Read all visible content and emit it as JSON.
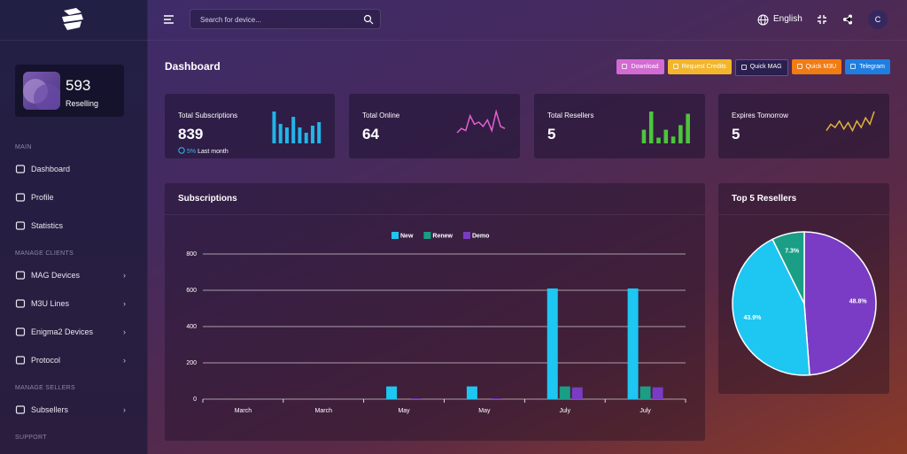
{
  "sidebar": {
    "balance": {
      "value": 593,
      "label": "Reselling"
    },
    "sections": [
      {
        "title": "MAIN",
        "items": [
          {
            "label": "Dashboard"
          },
          {
            "label": "Profile"
          },
          {
            "label": "Statistics"
          }
        ]
      },
      {
        "title": "MANAGE CLIENTS",
        "items": [
          {
            "label": "MAG Devices",
            "submenu": true
          },
          {
            "label": "M3U Lines",
            "submenu": true
          },
          {
            "label": "Enigma2 Devices",
            "submenu": true
          },
          {
            "label": "Protocol",
            "submenu": true
          }
        ]
      },
      {
        "title": "MANAGE SELLERS",
        "items": [
          {
            "label": "Subsellers",
            "submenu": true
          }
        ]
      },
      {
        "title": "SUPPORT"
      }
    ]
  },
  "topbar": {
    "search_placeholder": "Search for device...",
    "language": "English",
    "avatar": "C"
  },
  "page_title": "Dashboard",
  "actions": [
    "Download",
    "Request Credits",
    "Quick MAG",
    "Quick M3U",
    "Telegram"
  ],
  "stats": [
    {
      "title": "Total Subscriptions",
      "value": 839,
      "change": "5%",
      "change_label": "Last month",
      "spark_type": "bar",
      "spark_color": "#22b5e8",
      "spark": [
        36,
        22,
        18,
        30,
        18,
        12,
        20,
        24
      ]
    },
    {
      "title": "Total Online",
      "value": 64,
      "spark_type": "line",
      "spark_color": "#e35fd0",
      "spark": [
        10,
        14,
        12,
        26,
        18,
        20,
        16,
        22,
        12,
        30,
        16,
        14
      ]
    },
    {
      "title": "Total Resellers",
      "value": 5,
      "spark_type": "bar",
      "spark_color": "#4cc63c",
      "spark": [
        12,
        28,
        5,
        12,
        6,
        16,
        26
      ]
    },
    {
      "title": "Expires Tomorrow",
      "value": 5,
      "spark_type": "line",
      "spark_color": "#e0b43a",
      "spark": [
        8,
        12,
        10,
        14,
        9,
        13,
        8,
        14,
        10,
        16,
        12,
        20
      ]
    }
  ],
  "chart_data": [
    {
      "type": "bar",
      "title": "Subscriptions",
      "categories": [
        "March",
        "March",
        "May",
        "May",
        "July",
        "July"
      ],
      "series": [
        {
          "name": "New",
          "color": "#1ec6f2",
          "values": [
            0,
            0,
            70,
            70,
            610,
            610
          ]
        },
        {
          "name": "Renew",
          "color": "#1a9e86",
          "values": [
            0,
            0,
            0,
            0,
            70,
            70
          ]
        },
        {
          "name": "Demo",
          "color": "#7a3cc4",
          "values": [
            0,
            0,
            4,
            4,
            65,
            65
          ]
        }
      ],
      "ylim": [
        0,
        800
      ],
      "yticks": [
        0,
        200,
        400,
        600,
        800
      ],
      "grid": true,
      "legend": "top"
    },
    {
      "type": "pie",
      "title": "Top 5 Resellers",
      "values": [
        48.8,
        43.9,
        7.3
      ],
      "value_labels": [
        "48.8%",
        "43.9%",
        "7.3%"
      ],
      "colors": [
        "#7a3cc4",
        "#1ec6f2",
        "#1a9e86"
      ]
    }
  ]
}
